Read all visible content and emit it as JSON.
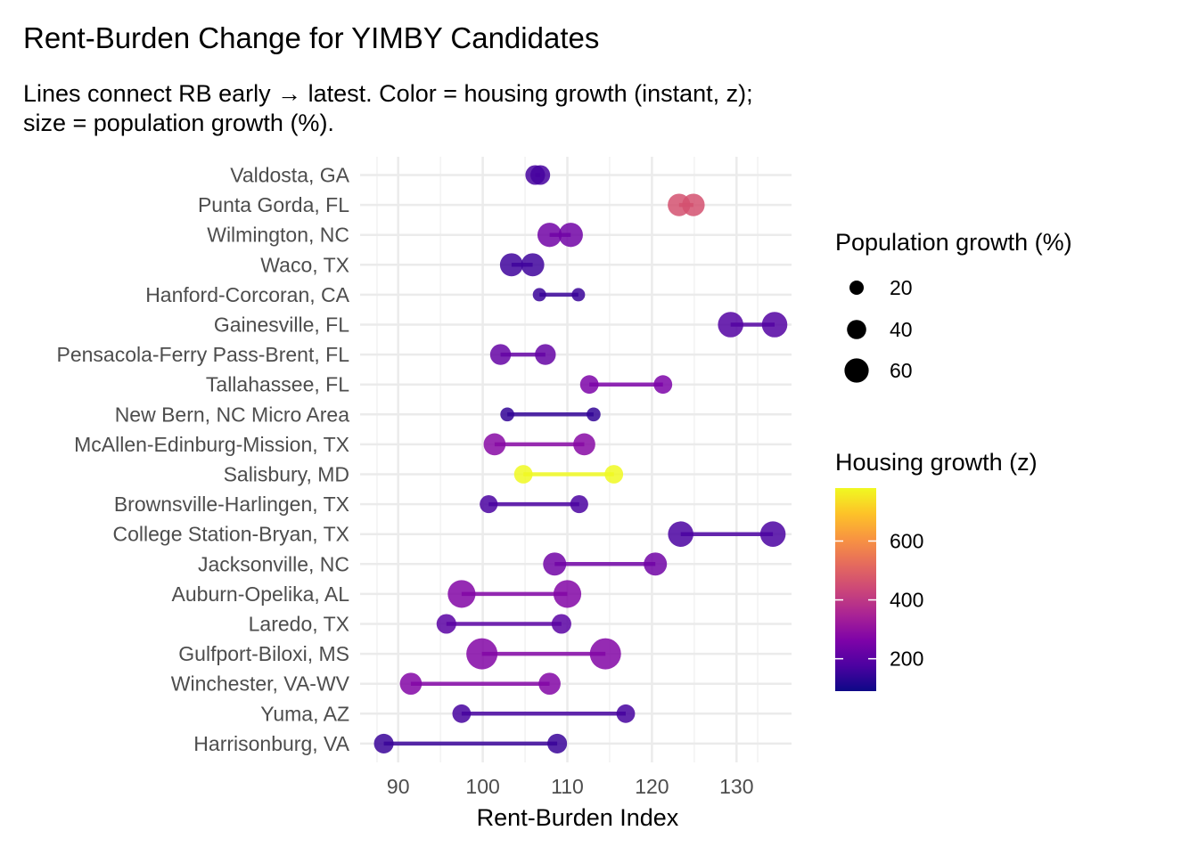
{
  "chart_data": {
    "type": "dumbbell",
    "title": "Rent-Burden Change for YIMBY Candidates",
    "subtitle_lines": [
      "Lines connect RB early → latest. Color = housing growth (instant, z);",
      "size = population growth (%)."
    ],
    "xlabel": "Rent-Burden Index",
    "ylabel": "",
    "xlim": [
      85.5,
      136.5
    ],
    "x_ticks": [
      90,
      100,
      110,
      120,
      130
    ],
    "x_tick_labels": [
      "90",
      "100",
      "110",
      "120",
      "130"
    ],
    "grid": true,
    "legend_position": "right",
    "size_legend": {
      "title": "Population growth (%)",
      "values": [
        20,
        40,
        60
      ],
      "labels": [
        "20",
        "40",
        "60"
      ]
    },
    "color_legend": {
      "title": "Housing growth (z)",
      "range": [
        90,
        780
      ],
      "ticks": [
        200,
        400,
        600
      ],
      "tick_labels": [
        "200",
        "400",
        "600"
      ],
      "colormap": "plasma"
    },
    "series": [
      {
        "name": "Valdosta, GA",
        "early": 106.2,
        "latest": 106.8,
        "housing_growth": 170,
        "pop_growth": 32
      },
      {
        "name": "Punta Gorda, FL",
        "early": 123.2,
        "latest": 124.9,
        "housing_growth": 460,
        "pop_growth": 42
      },
      {
        "name": "Wilmington, NC",
        "early": 107.9,
        "latest": 110.4,
        "housing_growth": 240,
        "pop_growth": 48
      },
      {
        "name": "Waco, TX",
        "early": 103.4,
        "latest": 105.9,
        "housing_growth": 160,
        "pop_growth": 44
      },
      {
        "name": "Hanford-Corcoran, CA",
        "early": 106.7,
        "latest": 111.3,
        "housing_growth": 150,
        "pop_growth": 10
      },
      {
        "name": "Gainesville, FL",
        "early": 129.3,
        "latest": 134.5,
        "housing_growth": 190,
        "pop_growth": 52
      },
      {
        "name": "Pensacola-Ferry Pass-Brent, FL",
        "early": 102.1,
        "latest": 107.4,
        "housing_growth": 220,
        "pop_growth": 36
      },
      {
        "name": "Tallahassee, FL",
        "early": 112.6,
        "latest": 121.3,
        "housing_growth": 260,
        "pop_growth": 28
      },
      {
        "name": "New Bern, NC Micro Area",
        "early": 102.9,
        "latest": 113.1,
        "housing_growth": 140,
        "pop_growth": 12
      },
      {
        "name": "McAllen-Edinburg-Mission, TX",
        "early": 101.4,
        "latest": 112.0,
        "housing_growth": 280,
        "pop_growth": 40
      },
      {
        "name": "Salisbury, MD",
        "early": 104.8,
        "latest": 115.5,
        "housing_growth": 780,
        "pop_growth": 28
      },
      {
        "name": "Brownsville-Harlingen, TX",
        "early": 100.7,
        "latest": 111.4,
        "housing_growth": 175,
        "pop_growth": 26
      },
      {
        "name": "College Station-Bryan, TX",
        "early": 123.4,
        "latest": 134.3,
        "housing_growth": 175,
        "pop_growth": 52
      },
      {
        "name": "Jacksonville, NC",
        "early": 108.5,
        "latest": 120.4,
        "housing_growth": 240,
        "pop_growth": 44
      },
      {
        "name": "Auburn-Opelika, AL",
        "early": 97.5,
        "latest": 110.0,
        "housing_growth": 270,
        "pop_growth": 60
      },
      {
        "name": "Laredo, TX",
        "early": 95.7,
        "latest": 109.3,
        "housing_growth": 200,
        "pop_growth": 32
      },
      {
        "name": "Gulfport-Biloxi, MS",
        "early": 99.9,
        "latest": 114.5,
        "housing_growth": 270,
        "pop_growth": 72
      },
      {
        "name": "Winchester, VA-WV",
        "early": 91.5,
        "latest": 107.9,
        "housing_growth": 270,
        "pop_growth": 40
      },
      {
        "name": "Yuma, AZ",
        "early": 97.5,
        "latest": 116.9,
        "housing_growth": 170,
        "pop_growth": 28
      },
      {
        "name": "Harrisonburg, VA",
        "early": 88.3,
        "latest": 108.8,
        "housing_growth": 150,
        "pop_growth": 32
      }
    ]
  }
}
